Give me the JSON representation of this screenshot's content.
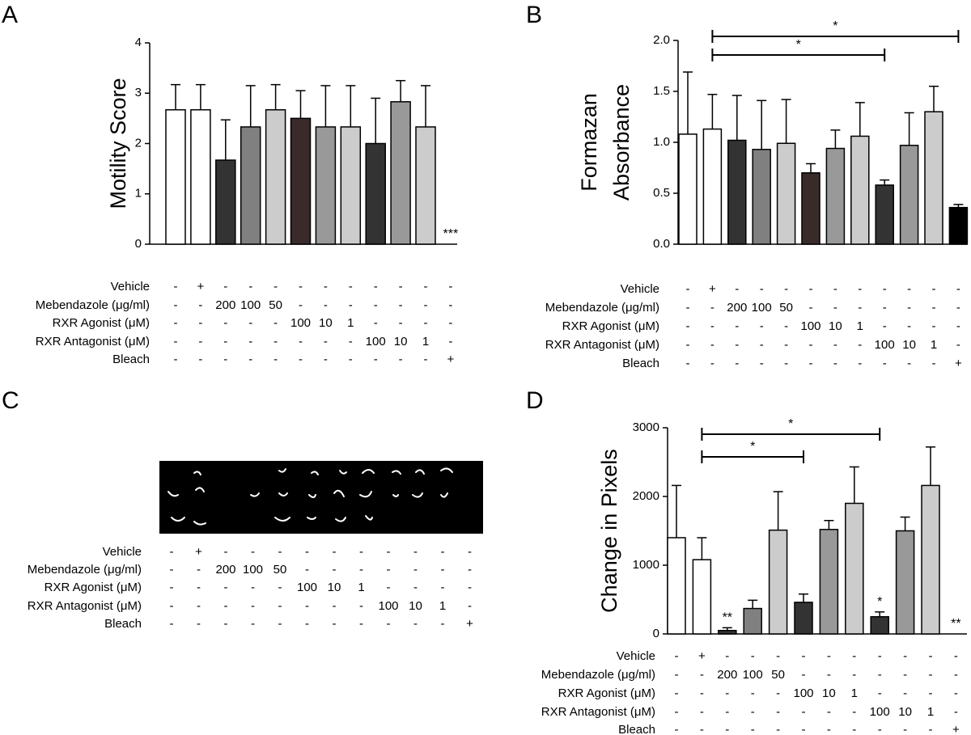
{
  "chart_data": [
    {
      "type": "bar",
      "panel": "A",
      "ylabel": "Motility Score",
      "categories": [
        null,
        null,
        null,
        null,
        null,
        null,
        null,
        null,
        null,
        null,
        null,
        null
      ],
      "values": [
        2.67,
        2.67,
        1.67,
        2.33,
        2.67,
        2.5,
        2.33,
        2.33,
        2.0,
        2.83,
        2.33,
        0
      ],
      "errors": [
        0.5,
        0.5,
        0.8,
        0.82,
        0.5,
        0.55,
        0.82,
        0.82,
        0.9,
        0.42,
        0.82,
        null
      ],
      "colors": [
        "#ffffff",
        "#ffffff",
        "#333333",
        "#808080",
        "#cccccc",
        "#3a2b2b",
        "#999999",
        "#cccccc",
        "#333333",
        "#999999",
        "#cccccc",
        "#ffffff"
      ],
      "significance": [
        null,
        null,
        null,
        null,
        null,
        null,
        null,
        null,
        null,
        null,
        null,
        "***"
      ],
      "brackets": [],
      "ylim": [
        0,
        4
      ],
      "yticks": [
        0,
        1,
        2,
        3,
        4
      ],
      "treatments": [
        {
          "label": "Vehicle",
          "cells": [
            "-",
            "+",
            "-",
            "-",
            "-",
            "-",
            "-",
            "-",
            "-",
            "-",
            "-",
            "-"
          ]
        },
        {
          "label": "Mebendazole (μg/ml)",
          "cells": [
            "-",
            "-",
            "200",
            "100",
            "50",
            "-",
            "-",
            "-",
            "-",
            "-",
            "-",
            "-"
          ]
        },
        {
          "label": "RXR Agonist (μM)",
          "cells": [
            "-",
            "-",
            "-",
            "-",
            "-",
            "100",
            "10",
            "1",
            "-",
            "-",
            "-",
            "-"
          ]
        },
        {
          "label": "RXR Antagonist (μM)",
          "cells": [
            "-",
            "-",
            "-",
            "-",
            "-",
            "-",
            "-",
            "-",
            "100",
            "10",
            "1",
            "-"
          ]
        },
        {
          "label": "Bleach",
          "cells": [
            "-",
            "-",
            "-",
            "-",
            "-",
            "-",
            "-",
            "-",
            "-",
            "-",
            "-",
            "+"
          ]
        }
      ]
    },
    {
      "type": "bar",
      "panel": "B",
      "ylabel": [
        "Formazan",
        "Absorbance"
      ],
      "categories": [
        null,
        null,
        null,
        null,
        null,
        null,
        null,
        null,
        null,
        null,
        null,
        null
      ],
      "values": [
        1.08,
        1.13,
        1.02,
        0.93,
        0.99,
        0.7,
        0.94,
        1.06,
        0.58,
        0.97,
        1.3,
        0.36
      ],
      "errors": [
        0.61,
        0.34,
        0.44,
        0.48,
        0.43,
        0.09,
        0.18,
        0.33,
        0.05,
        0.32,
        0.25,
        0.03
      ],
      "colors": [
        "#ffffff",
        "#ffffff",
        "#333333",
        "#808080",
        "#cccccc",
        "#3a2b2b",
        "#999999",
        "#cccccc",
        "#333333",
        "#999999",
        "#cccccc",
        "#000000"
      ],
      "significance": [
        null,
        null,
        null,
        null,
        null,
        null,
        null,
        null,
        null,
        null,
        null,
        null
      ],
      "brackets": [
        {
          "start": 1,
          "end": 11,
          "text": "*"
        },
        {
          "start": 1,
          "end": 8,
          "text": "*"
        }
      ],
      "ylim": [
        0,
        2
      ],
      "yticks": [
        {
          "value": 0,
          "label": "0.0"
        },
        0.5,
        {
          "value": 1,
          "label": "1.0"
        },
        1.5,
        {
          "value": 2,
          "label": "2.0"
        }
      ],
      "treatments": [
        {
          "label": "Vehicle",
          "cells": [
            "-",
            "+",
            "-",
            "-",
            "-",
            "-",
            "-",
            "-",
            "-",
            "-",
            "-",
            "-"
          ]
        },
        {
          "label": "Mebendazole (μg/ml)",
          "cells": [
            "-",
            "-",
            "200",
            "100",
            "50",
            "-",
            "-",
            "-",
            "-",
            "-",
            "-",
            "-"
          ]
        },
        {
          "label": "RXR Agonist (μM)",
          "cells": [
            "-",
            "-",
            "-",
            "-",
            "-",
            "100",
            "10",
            "1",
            "-",
            "-",
            "-",
            "-"
          ]
        },
        {
          "label": "RXR Antagonist (μM)",
          "cells": [
            "-",
            "-",
            "-",
            "-",
            "-",
            "-",
            "-",
            "-",
            "100",
            "10",
            "1",
            "-"
          ]
        },
        {
          "label": "Bleach",
          "cells": [
            "-",
            "-",
            "-",
            "-",
            "-",
            "-",
            "-",
            "-",
            "-",
            "-",
            "-",
            "+"
          ]
        }
      ]
    },
    {
      "type": "bar",
      "panel": "D",
      "ylabel": "Change in Pixels",
      "categories": [
        null,
        null,
        null,
        null,
        null,
        null,
        null,
        null,
        null,
        null,
        null,
        null
      ],
      "values": [
        1400,
        1080,
        50,
        370,
        1510,
        460,
        1520,
        1900,
        250,
        1500,
        2160,
        0
      ],
      "errors": [
        760,
        320,
        40,
        120,
        560,
        120,
        130,
        530,
        70,
        200,
        560,
        null
      ],
      "colors": [
        "#ffffff",
        "#ffffff",
        "#333333",
        "#808080",
        "#cccccc",
        "#333333",
        "#999999",
        "#cccccc",
        "#333333",
        "#999999",
        "#cccccc",
        "#ffffff"
      ],
      "significance": [
        null,
        null,
        "**",
        null,
        null,
        null,
        null,
        null,
        "*",
        null,
        null,
        "**"
      ],
      "brackets": [
        {
          "start": 1,
          "end": 8,
          "text": "*"
        },
        {
          "start": 1,
          "end": 5,
          "text": "*"
        }
      ],
      "ylim": [
        0,
        3000
      ],
      "yticks": [
        0,
        1000,
        2000,
        3000
      ],
      "treatments": [
        {
          "label": "Vehicle",
          "cells": [
            "-",
            "+",
            "-",
            "-",
            "-",
            "-",
            "-",
            "-",
            "-",
            "-",
            "-",
            "-"
          ]
        },
        {
          "label": "Mebendazole (μg/ml)",
          "cells": [
            "-",
            "-",
            "200",
            "100",
            "50",
            "-",
            "-",
            "-",
            "-",
            "-",
            "-",
            "-"
          ]
        },
        {
          "label": "RXR Agonist (μM)",
          "cells": [
            "-",
            "-",
            "-",
            "-",
            "-",
            "100",
            "10",
            "1",
            "-",
            "-",
            "-",
            "-"
          ]
        },
        {
          "label": "RXR Antagonist (μM)",
          "cells": [
            "-",
            "-",
            "-",
            "-",
            "-",
            "-",
            "-",
            "-",
            "100",
            "10",
            "1",
            "-"
          ]
        },
        {
          "label": "Bleach",
          "cells": [
            "-",
            "-",
            "-",
            "-",
            "-",
            "-",
            "-",
            "-",
            "-",
            "-",
            "-",
            "+"
          ]
        }
      ]
    }
  ],
  "panel_c": {
    "panel": "C",
    "treatments": [
      {
        "label": "Vehicle",
        "cells": [
          "-",
          "+",
          "-",
          "-",
          "-",
          "-",
          "-",
          "-",
          "-",
          "-",
          "-",
          "-"
        ]
      },
      {
        "label": "Mebendazole (μg/ml)",
        "cells": [
          "-",
          "-",
          "200",
          "100",
          "50",
          "-",
          "-",
          "-",
          "-",
          "-",
          "-",
          "-"
        ]
      },
      {
        "label": "RXR Agonist (μM)",
        "cells": [
          "-",
          "-",
          "-",
          "-",
          "-",
          "100",
          "10",
          "1",
          "-",
          "-",
          "-",
          "-"
        ]
      },
      {
        "label": "RXR Antagonist (μM)",
        "cells": [
          "-",
          "-",
          "-",
          "-",
          "-",
          "-",
          "-",
          "-",
          "100",
          "10",
          "1",
          "-"
        ]
      },
      {
        "label": "Bleach",
        "cells": [
          "-",
          "-",
          "-",
          "-",
          "-",
          "-",
          "-",
          "-",
          "-",
          "-",
          "-",
          "+"
        ]
      }
    ]
  }
}
